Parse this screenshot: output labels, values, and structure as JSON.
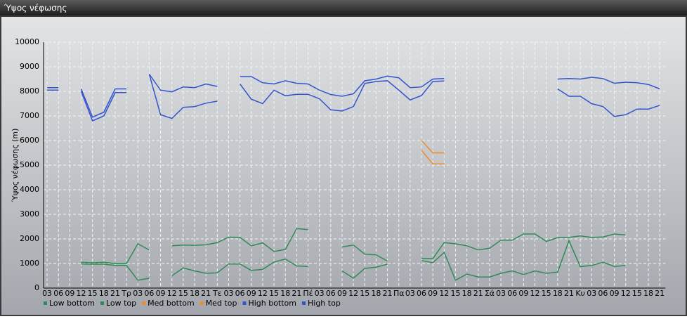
{
  "chart_data": {
    "type": "line",
    "title": "Ύψος νέφωσης",
    "y_label": "Ύψος νέφωσης (m)",
    "categories": [
      "03",
      "06",
      "09",
      "12",
      "15",
      "18",
      "21",
      "Τρ",
      "03",
      "06",
      "09",
      "12",
      "15",
      "18",
      "21",
      "Τε",
      "03",
      "06",
      "09",
      "12",
      "15",
      "18",
      "21",
      "Πέ",
      "03",
      "06",
      "09",
      "12",
      "15",
      "18",
      "21",
      "Πα",
      "03",
      "06",
      "09",
      "12",
      "15",
      "18",
      "21",
      "Σά",
      "03",
      "06",
      "09",
      "12",
      "15",
      "18",
      "21",
      "Κυ",
      "03",
      "06",
      "09",
      "12",
      "15",
      "18",
      "21"
    ],
    "ylim": [
      0,
      10000
    ],
    "yticks": [
      0,
      1000,
      2000,
      3000,
      4000,
      5000,
      6000,
      7000,
      8000,
      9000,
      10000
    ],
    "grid": true,
    "series": [
      {
        "name": "Low bottom",
        "color": "#2e8b57",
        "values": [
          null,
          null,
          null,
          980,
          970,
          970,
          920,
          920,
          320,
          400,
          null,
          500,
          820,
          700,
          600,
          620,
          980,
          980,
          720,
          760,
          1060,
          1180,
          900,
          880,
          null,
          null,
          700,
          400,
          800,
          850,
          970,
          null,
          null,
          1120,
          1030,
          1450,
          320,
          570,
          450,
          450,
          600,
          700,
          550,
          700,
          600,
          650,
          1930,
          870,
          920,
          1050,
          880,
          920,
          null,
          null,
          null
        ]
      },
      {
        "name": "Low top",
        "color": "#2e8b57",
        "values": [
          null,
          null,
          null,
          1050,
          1030,
          1050,
          1000,
          1000,
          1800,
          1550,
          null,
          1720,
          1750,
          1740,
          1760,
          1850,
          2070,
          2060,
          1720,
          1840,
          1490,
          1570,
          2420,
          2380,
          null,
          null,
          1670,
          1750,
          1380,
          1350,
          1100,
          null,
          null,
          1200,
          1200,
          1850,
          1800,
          1720,
          1550,
          1620,
          1950,
          1950,
          2200,
          2200,
          1900,
          2050,
          2060,
          2120,
          2060,
          2080,
          2200,
          2160,
          null,
          null,
          null
        ]
      },
      {
        "name": "Med bottom",
        "color": "#f08c28",
        "values": [
          null,
          null,
          null,
          null,
          null,
          null,
          null,
          null,
          null,
          null,
          null,
          null,
          null,
          null,
          null,
          null,
          null,
          null,
          null,
          null,
          null,
          null,
          null,
          null,
          null,
          null,
          null,
          null,
          null,
          null,
          null,
          null,
          null,
          5600,
          5050,
          5050,
          null,
          null,
          null,
          null,
          null,
          null,
          null,
          null,
          null,
          null,
          null,
          null,
          null,
          null,
          null,
          null,
          null,
          null,
          null
        ]
      },
      {
        "name": "Med top",
        "color": "#f08c28",
        "values": [
          null,
          null,
          null,
          null,
          null,
          null,
          null,
          null,
          null,
          null,
          null,
          null,
          null,
          null,
          null,
          null,
          null,
          null,
          null,
          null,
          null,
          null,
          null,
          null,
          null,
          null,
          null,
          null,
          null,
          null,
          null,
          null,
          null,
          6000,
          5500,
          5500,
          null,
          null,
          null,
          null,
          null,
          null,
          null,
          null,
          null,
          null,
          null,
          null,
          null,
          null,
          null,
          null,
          null,
          null,
          null
        ]
      },
      {
        "name": "High bottom",
        "color": "#3355cc",
        "values": [
          8050,
          8050,
          null,
          8000,
          6800,
          7000,
          7950,
          7950,
          null,
          8700,
          7050,
          6900,
          7350,
          7380,
          7520,
          7600,
          null,
          8300,
          7680,
          7500,
          8050,
          7820,
          7880,
          7880,
          7700,
          7250,
          7200,
          7380,
          8320,
          8400,
          8430,
          8050,
          7650,
          7830,
          8400,
          8420,
          null,
          null,
          null,
          null,
          null,
          null,
          null,
          null,
          null,
          8100,
          7800,
          7800,
          7500,
          7380,
          6980,
          7050,
          7280,
          7280,
          7430
        ]
      },
      {
        "name": "High top",
        "color": "#3355cc",
        "values": [
          8150,
          8150,
          null,
          8100,
          6950,
          7150,
          8100,
          8100,
          null,
          8700,
          8050,
          7980,
          8180,
          8150,
          8300,
          8200,
          null,
          8600,
          8600,
          8350,
          8300,
          8430,
          8330,
          8300,
          8050,
          7870,
          7800,
          7900,
          8430,
          8500,
          8620,
          8550,
          8150,
          8180,
          8500,
          8520,
          null,
          null,
          null,
          null,
          null,
          null,
          null,
          null,
          null,
          8500,
          8520,
          8500,
          8570,
          8520,
          8330,
          8370,
          8350,
          8280,
          8100
        ]
      }
    ]
  }
}
